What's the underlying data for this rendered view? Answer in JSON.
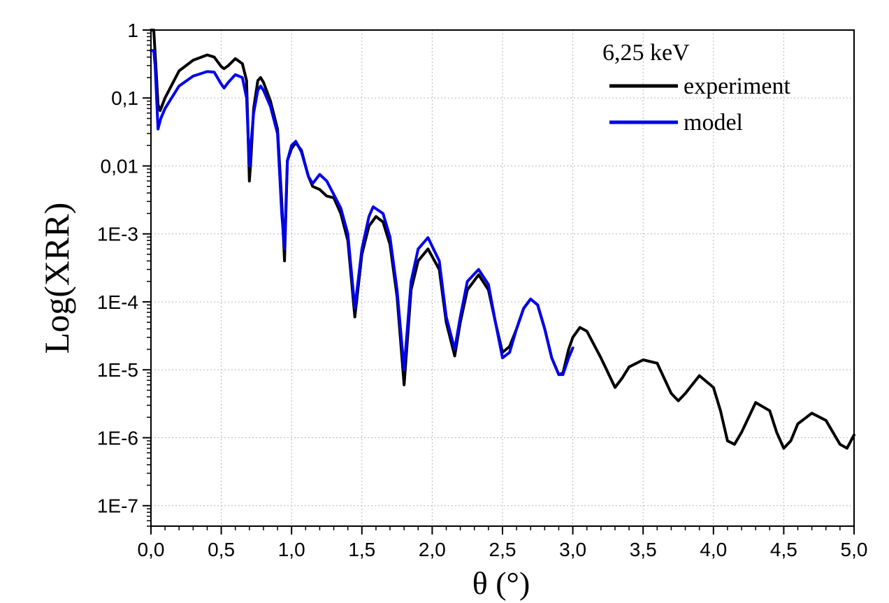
{
  "chart_data": {
    "type": "line",
    "title": "",
    "xlabel": "θ (°)",
    "ylabel": "Log(XRR)",
    "xlim": [
      0,
      5
    ],
    "ylim": [
      5e-08,
      1
    ],
    "yscale": "log",
    "grid": true,
    "x_ticks": [
      0,
      0.5,
      1,
      1.5,
      2,
      2.5,
      3,
      3.5,
      4,
      4.5,
      5
    ],
    "x_tick_labels": [
      "0,0",
      "0,5",
      "1,0",
      "1,5",
      "2,0",
      "2,5",
      "3,0",
      "3,5",
      "4,0",
      "4,5",
      "5,0"
    ],
    "y_ticks": [
      1,
      0.1,
      0.01,
      0.001,
      0.0001,
      1e-05,
      1e-06,
      1e-07
    ],
    "y_tick_labels": [
      "1",
      "0,1",
      "0,01",
      "1E-3",
      "1E-4",
      "1E-5",
      "1E-6",
      "1E-7"
    ],
    "legend": {
      "position": "top-right",
      "title": "6,25 keV"
    },
    "series": [
      {
        "name": "experiment",
        "color": "#000000",
        "x": [
          0.0,
          0.02,
          0.035,
          0.05,
          0.065,
          0.1,
          0.2,
          0.3,
          0.4,
          0.45,
          0.5,
          0.52,
          0.55,
          0.6,
          0.65,
          0.68,
          0.7,
          0.71,
          0.73,
          0.76,
          0.78,
          0.8,
          0.85,
          0.9,
          0.93,
          0.95,
          0.97,
          1.0,
          1.03,
          1.07,
          1.12,
          1.15,
          1.2,
          1.25,
          1.3,
          1.35,
          1.4,
          1.45,
          1.5,
          1.55,
          1.6,
          1.65,
          1.7,
          1.75,
          1.8,
          1.85,
          1.9,
          1.97,
          2.05,
          2.1,
          2.16,
          2.2,
          2.25,
          2.33,
          2.4,
          2.45,
          2.5,
          2.55,
          2.6,
          2.65,
          2.7,
          2.75,
          2.8,
          2.85,
          2.9,
          2.93,
          2.97,
          3.0,
          3.05,
          3.1,
          3.2,
          3.3,
          3.35,
          3.4,
          3.5,
          3.6,
          3.7,
          3.75,
          3.8,
          3.9,
          4.0,
          4.05,
          4.1,
          4.15,
          4.2,
          4.3,
          4.4,
          4.45,
          4.5,
          4.55,
          4.6,
          4.7,
          4.8,
          4.9,
          4.95,
          5.0
        ],
        "y": [
          1.0,
          1.0,
          0.3,
          0.08,
          0.065,
          0.1,
          0.25,
          0.36,
          0.43,
          0.4,
          0.29,
          0.27,
          0.3,
          0.38,
          0.32,
          0.18,
          0.006,
          0.012,
          0.07,
          0.18,
          0.2,
          0.17,
          0.09,
          0.035,
          0.003,
          0.0004,
          0.012,
          0.018,
          0.022,
          0.017,
          0.007,
          0.005,
          0.0045,
          0.0036,
          0.0034,
          0.002,
          0.0008,
          6e-05,
          0.0005,
          0.0013,
          0.0018,
          0.0015,
          0.0007,
          0.00012,
          6e-06,
          0.00015,
          0.0004,
          0.0006,
          0.0003,
          5e-05,
          1.6e-05,
          5e-05,
          0.00015,
          0.00025,
          0.00015,
          5e-05,
          1.8e-05,
          2.2e-05,
          4e-05,
          8e-05,
          0.00011,
          9e-05,
          4e-05,
          1.5e-05,
          8.5e-06,
          9e-06,
          2e-05,
          3e-05,
          4.2e-05,
          3.7e-05,
          1.5e-05,
          5.5e-06,
          7.5e-06,
          1.1e-05,
          1.4e-05,
          1.25e-05,
          4.5e-06,
          3.5e-06,
          4.5e-06,
          8.2e-06,
          5.5e-06,
          2.5e-06,
          9e-07,
          8e-07,
          1.2e-06,
          3.3e-06,
          2.5e-06,
          1.2e-06,
          7e-07,
          9e-07,
          1.6e-06,
          2.3e-06,
          1.8e-06,
          8e-07,
          7e-07,
          1.1e-06
        ]
      },
      {
        "name": "model",
        "color": "#0000ee",
        "x": [
          0.0,
          0.02,
          0.03,
          0.05,
          0.07,
          0.1,
          0.2,
          0.3,
          0.4,
          0.45,
          0.5,
          0.52,
          0.55,
          0.6,
          0.65,
          0.68,
          0.7,
          0.71,
          0.73,
          0.76,
          0.78,
          0.8,
          0.85,
          0.9,
          0.93,
          0.95,
          0.97,
          1.0,
          1.03,
          1.07,
          1.12,
          1.15,
          1.2,
          1.25,
          1.3,
          1.35,
          1.4,
          1.45,
          1.5,
          1.55,
          1.58,
          1.65,
          1.7,
          1.75,
          1.8,
          1.85,
          1.9,
          1.97,
          2.05,
          2.1,
          2.16,
          2.2,
          2.25,
          2.33,
          2.4,
          2.45,
          2.5,
          2.55,
          2.6,
          2.65,
          2.7,
          2.75,
          2.8,
          2.85,
          2.9,
          2.93,
          2.97,
          3.0
        ],
        "y": [
          0.5,
          0.5,
          0.3,
          0.035,
          0.05,
          0.07,
          0.15,
          0.21,
          0.245,
          0.24,
          0.16,
          0.14,
          0.17,
          0.22,
          0.2,
          0.1,
          0.01,
          0.02,
          0.06,
          0.13,
          0.15,
          0.13,
          0.075,
          0.03,
          0.002,
          0.0006,
          0.012,
          0.02,
          0.023,
          0.016,
          0.007,
          0.0055,
          0.0075,
          0.006,
          0.0038,
          0.0024,
          0.001,
          8e-05,
          0.0006,
          0.0018,
          0.0025,
          0.002,
          0.0009,
          0.00015,
          1e-05,
          0.0002,
          0.0006,
          0.00088,
          0.0004,
          6e-05,
          2e-05,
          6e-05,
          0.0002,
          0.0003,
          0.00018,
          5e-05,
          1.5e-05,
          1.8e-05,
          4e-05,
          8e-05,
          0.00011,
          9e-05,
          4e-05,
          1.5e-05,
          8.5e-06,
          8.5e-06,
          1.5e-05,
          2.1e-05
        ]
      }
    ]
  }
}
